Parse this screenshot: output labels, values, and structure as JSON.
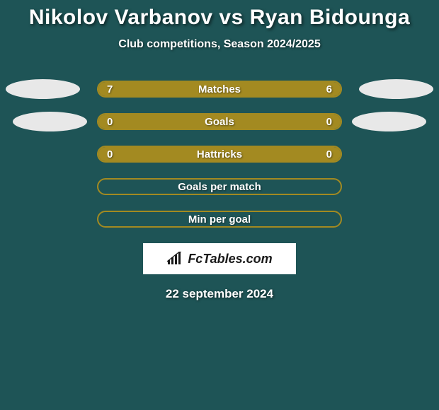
{
  "title": "Nikolov Varbanov vs Ryan Bidounga",
  "subtitle": "Club competitions, Season 2024/2025",
  "date": "22 september 2024",
  "logo_text": "FcTables.com",
  "colors": {
    "background": "#1e5456",
    "bar_border": "#a38a21",
    "bar_fill": "#a38a21",
    "oval": "#e8e8e8",
    "text": "#ffffff",
    "logo_bg": "#ffffff",
    "logo_text": "#1a1a1a"
  },
  "stats": [
    {
      "label": "Matches",
      "left_value": "7",
      "right_value": "6",
      "left_pct": 54,
      "right_pct": 46,
      "show_ovals": true,
      "oval_class_left": "oval-left",
      "oval_class_right": "oval-right"
    },
    {
      "label": "Goals",
      "left_value": "0",
      "right_value": "0",
      "left_pct": 50,
      "right_pct": 50,
      "show_ovals": true,
      "oval_class_left": "oval-left-2",
      "oval_class_right": "oval-right-2"
    },
    {
      "label": "Hattricks",
      "left_value": "0",
      "right_value": "0",
      "left_pct": 50,
      "right_pct": 50,
      "show_ovals": false
    },
    {
      "label": "Goals per match",
      "left_value": "",
      "right_value": "",
      "left_pct": 0,
      "right_pct": 0,
      "show_ovals": false
    },
    {
      "label": "Min per goal",
      "left_value": "",
      "right_value": "",
      "left_pct": 0,
      "right_pct": 0,
      "show_ovals": false
    }
  ]
}
